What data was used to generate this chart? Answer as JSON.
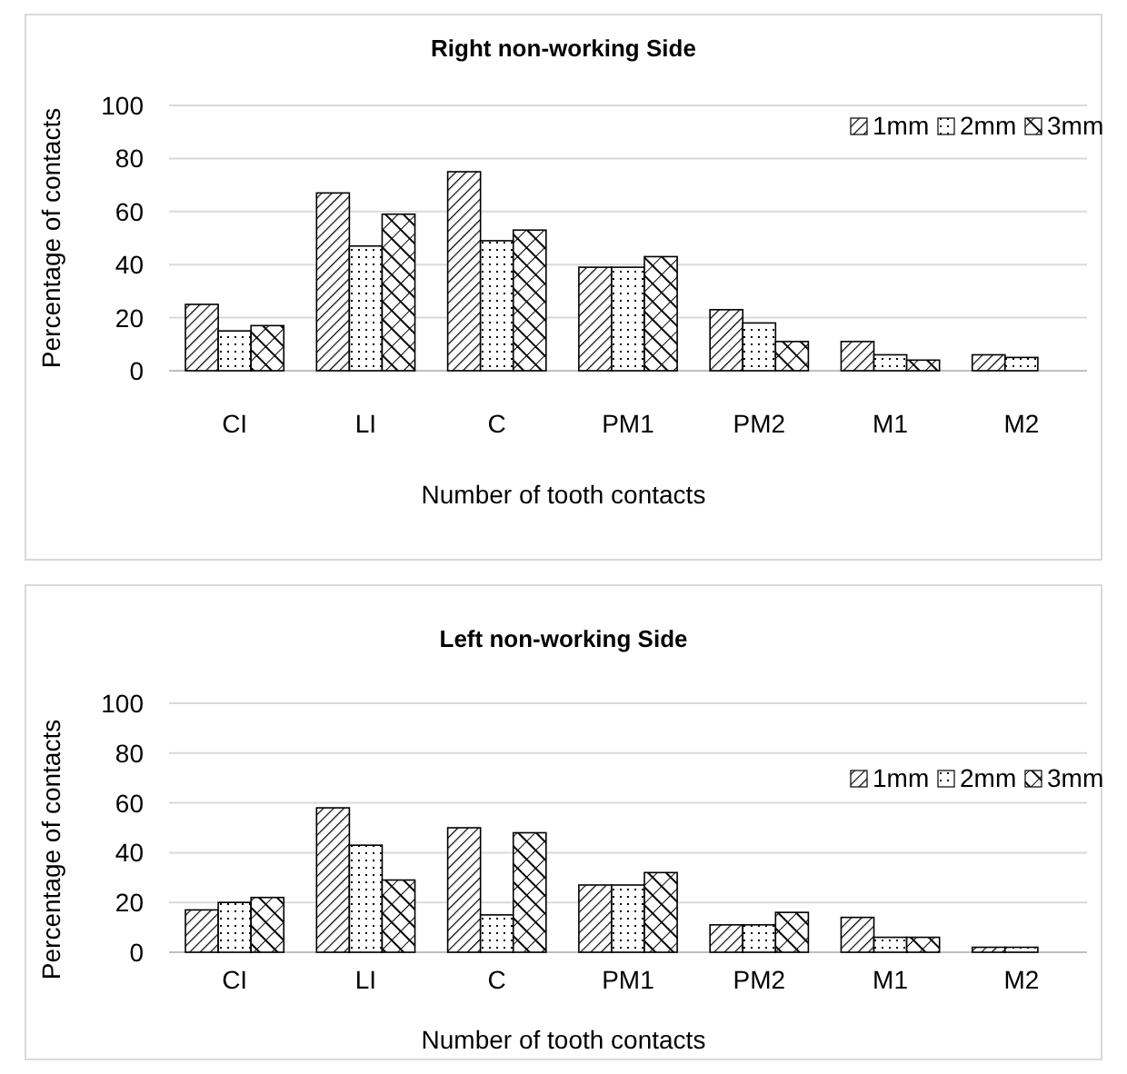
{
  "chart_data": [
    {
      "type": "bar",
      "title": "Right non-working Side",
      "xlabel": "Number of tooth contacts",
      "ylabel": "Percentage of contacts",
      "categories": [
        "CI",
        "LI",
        "C",
        "PM1",
        "PM2",
        "M1",
        "M2"
      ],
      "series": [
        {
          "name": "1mm",
          "color": "#000000",
          "values": [
            25,
            67,
            75,
            39,
            23,
            11,
            6
          ]
        },
        {
          "name": "2mm",
          "color": "#000000",
          "values": [
            15,
            47,
            49,
            39,
            18,
            6,
            5
          ]
        },
        {
          "name": "3mm",
          "color": "#000000",
          "values": [
            17,
            59,
            53,
            43,
            11,
            4,
            null
          ]
        }
      ],
      "ylim": [
        0,
        100
      ],
      "yticks": [
        0,
        20,
        40,
        60,
        80,
        100
      ],
      "grid": "y",
      "legend": "top right"
    },
    {
      "type": "bar",
      "title": "Left non-working Side",
      "xlabel": "Number of tooth contacts",
      "ylabel": "Percentage of contacts",
      "categories": [
        "CI",
        "LI",
        "C",
        "PM1",
        "PM2",
        "M1",
        "M2"
      ],
      "series": [
        {
          "name": "1mm",
          "color": "#000000",
          "values": [
            17,
            58,
            50,
            27,
            11,
            14,
            2
          ]
        },
        {
          "name": "2mm",
          "color": "#000000",
          "values": [
            20,
            43,
            15,
            27,
            11,
            6,
            2
          ]
        },
        {
          "name": "3mm",
          "color": "#000000",
          "values": [
            22,
            29,
            48,
            32,
            16,
            6,
            null
          ]
        }
      ],
      "ylim": [
        0,
        100
      ],
      "yticks": [
        0,
        20,
        40,
        60,
        80,
        100
      ],
      "grid": "y",
      "legend": "right"
    }
  ]
}
